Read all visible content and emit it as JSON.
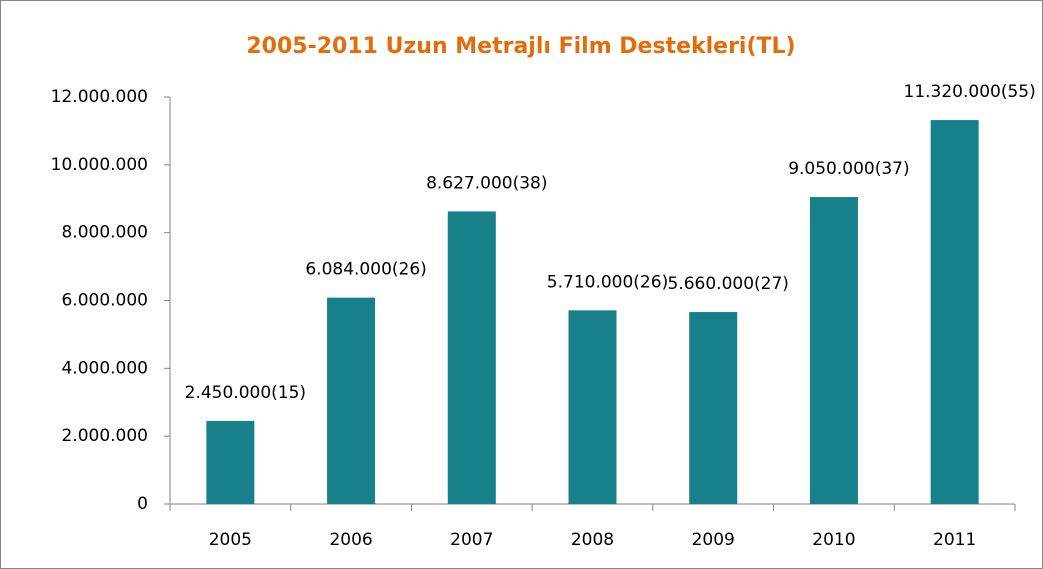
{
  "chart_data": {
    "type": "bar",
    "title": "2005-2011 Uzun Metrajlı Film Destekleri(TL)",
    "categories": [
      "2005",
      "2006",
      "2007",
      "2008",
      "2009",
      "2010",
      "2011"
    ],
    "values": [
      2450000,
      6084000,
      8627000,
      5710000,
      5660000,
      9050000,
      11320000
    ],
    "value_labels": [
      "2.450.000(15)",
      "6.084.000(26)",
      "8.627.000(38)",
      "5.710.000(26)",
      "5.660.000(27)",
      "9.050.000(37)",
      "11.320.000(55)"
    ],
    "color": "#17808A",
    "ylim": [
      0,
      12000000
    ],
    "yticks": [
      0,
      {
        "value": 2000000,
        "label": "2.000.000"
      },
      {
        "value": 4000000,
        "label": "4.000.000"
      },
      {
        "value": 6000000,
        "label": "6.000.000"
      },
      {
        "value": 8000000,
        "label": "8.000.000"
      },
      {
        "value": 10000000,
        "label": "10.000.000"
      },
      {
        "value": 12000000,
        "label": "12.000.000"
      }
    ],
    "grid": false
  }
}
